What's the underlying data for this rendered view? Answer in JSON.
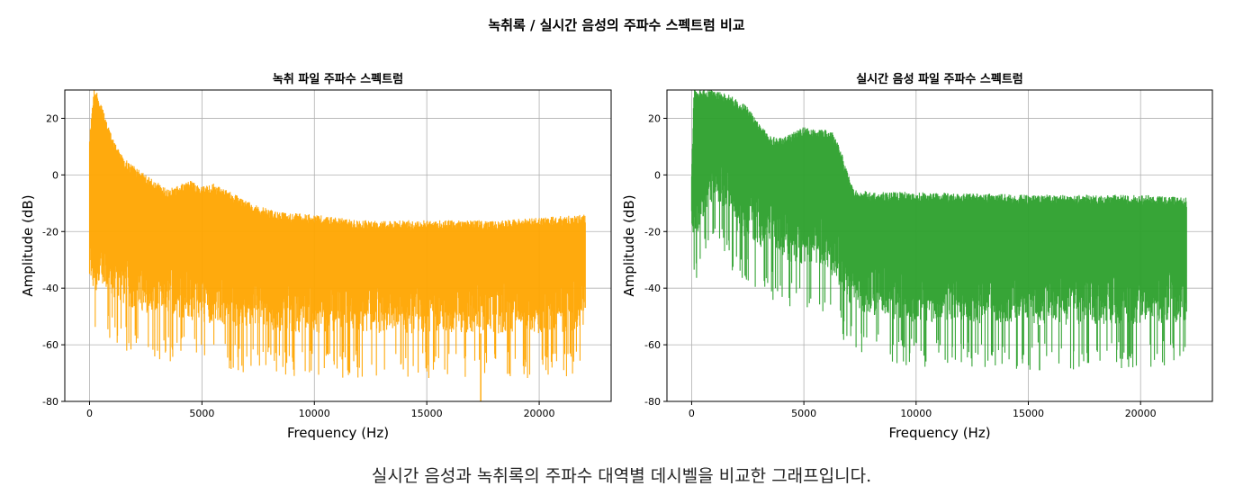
{
  "figure_title": "녹취록 / 실시간 음성의 주파수 스펙트럼 비교",
  "caption": "실시간 음성과 녹취록의 주파수 대역별 데시벨을 비교한 그래프입니다.",
  "chart_data": [
    {
      "type": "area",
      "title": "녹취 파일 주파수 스펙트럼",
      "xlabel": "Frequency (Hz)",
      "ylabel": "Amplitude (dB)",
      "xlim": [
        -1100,
        23200
      ],
      "ylim": [
        -80,
        30
      ],
      "xticks": [
        0,
        5000,
        10000,
        15000,
        20000
      ],
      "yticks": [
        -80,
        -60,
        -40,
        -20,
        0,
        20
      ],
      "grid": true,
      "color": "#FFA500",
      "x_range": [
        0,
        22050
      ],
      "upper_envelope": {
        "x": [
          0,
          200,
          400,
          800,
          1500,
          2500,
          3500,
          4500,
          5000,
          5500,
          6500,
          7500,
          8500,
          10000,
          12000,
          15000,
          18000,
          20000,
          22050
        ],
        "y": [
          14,
          31,
          28,
          18,
          6,
          0,
          -5,
          -2,
          -4,
          -3,
          -7,
          -11,
          -13,
          -14,
          -16,
          -16,
          -16,
          -15,
          -14
        ]
      },
      "lower_envelope": {
        "x": [
          0,
          1000,
          2000,
          5000,
          8000,
          10000,
          15000,
          20000,
          22050
        ],
        "y": [
          -40,
          -43,
          -48,
          -52,
          -55,
          -56,
          -56,
          -56,
          -55
        ]
      },
      "minimum_dip": {
        "x": 17400,
        "y": -80
      }
    },
    {
      "type": "area",
      "title": "실시간 음성 파일 주파수 스펙트럼",
      "xlabel": "Frequency (Hz)",
      "ylabel": "Amplitude (dB)",
      "xlim": [
        -1100,
        23200
      ],
      "ylim": [
        -80,
        30
      ],
      "xticks": [
        0,
        5000,
        10000,
        15000,
        20000
      ],
      "yticks": [
        -80,
        -60,
        -40,
        -20,
        0,
        20
      ],
      "grid": true,
      "color": "#2CA02C",
      "x_range": [
        0,
        22050
      ],
      "upper_envelope": {
        "x": [
          0,
          100,
          500,
          1000,
          1800,
          2500,
          3000,
          3500,
          4000,
          4500,
          5000,
          5500,
          6200,
          6600,
          6900,
          7200,
          8000,
          10000,
          15000,
          20000,
          22050
        ],
        "y": [
          0,
          30,
          30,
          30,
          28,
          24,
          18,
          14,
          13,
          15,
          17,
          16,
          16,
          10,
          2,
          -5,
          -6,
          -6,
          -7,
          -7,
          -8
        ]
      },
      "lower_envelope": {
        "x": [
          0,
          1000,
          2000,
          4000,
          6000,
          7000,
          8000,
          10000,
          15000,
          20000,
          22050
        ],
        "y": [
          -25,
          -8,
          -20,
          -30,
          -33,
          -45,
          -50,
          -52,
          -53,
          -53,
          -52
        ]
      },
      "minimum_dip": {
        "x": 15500,
        "y": -69
      }
    }
  ]
}
